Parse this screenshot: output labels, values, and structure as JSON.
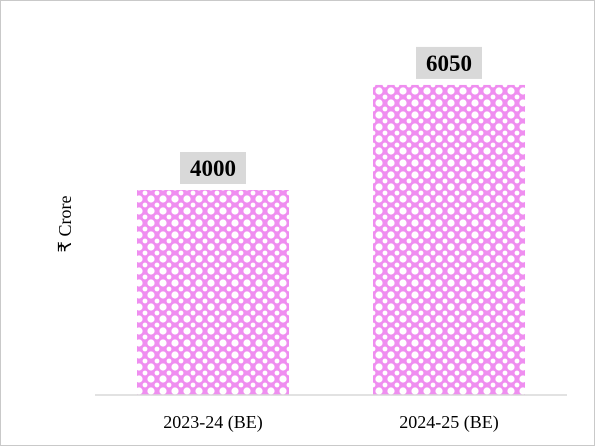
{
  "chart_data": {
    "type": "bar",
    "categories": [
      "2023-24 (BE)",
      "2024-25 (BE)"
    ],
    "values": [
      4000,
      6050
    ],
    "value_labels": [
      "4000",
      "6050"
    ],
    "title": "",
    "xlabel": "",
    "ylabel": "₹ Crore",
    "ylim": [
      0,
      6600
    ],
    "grid": false,
    "legend": "none"
  },
  "colors": {
    "bar_pattern_fill": "#ef8ef0",
    "bar_pattern_dots": "#ffffff",
    "data_label_bg": "#d9d9d9",
    "axis_line": "#d9d9d9"
  }
}
